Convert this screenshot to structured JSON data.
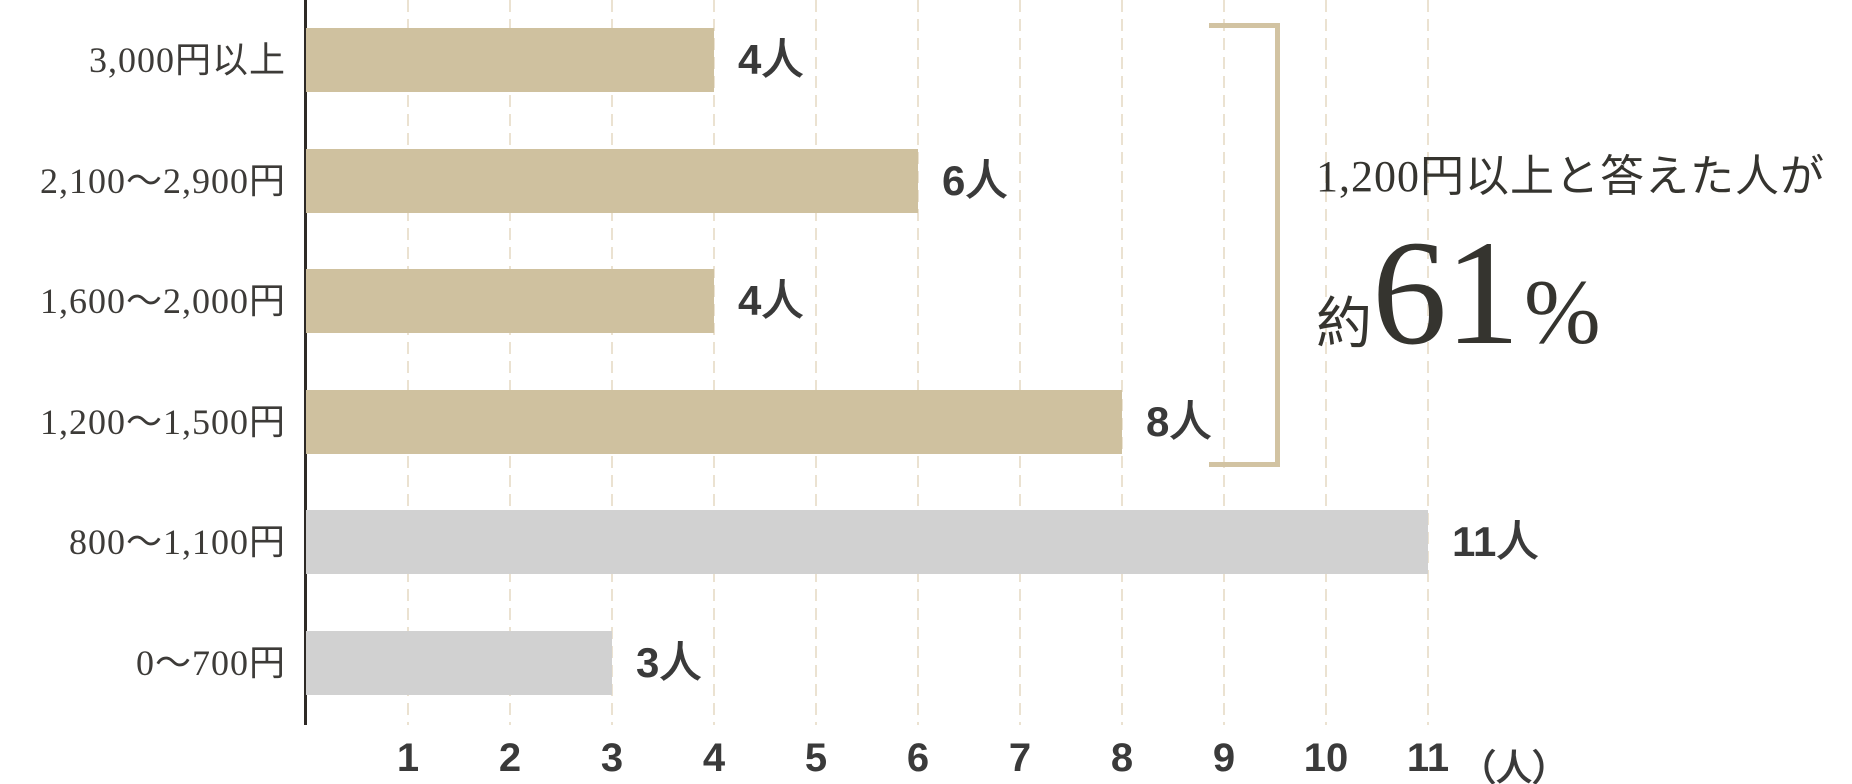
{
  "chart_data": {
    "type": "bar",
    "orientation": "horizontal",
    "title": "",
    "categories": [
      "3,000円以上",
      "2,100〜2,900円",
      "1,600〜2,000円",
      "1,200〜1,500円",
      "800〜1,100円",
      "0〜700円"
    ],
    "values": [
      4,
      6,
      4,
      8,
      11,
      3
    ],
    "value_labels": [
      "4人",
      "6人",
      "4人",
      "8人",
      "11人",
      "3人"
    ],
    "bar_colors": [
      "#cfc19f",
      "#cfc19f",
      "#cfc19f",
      "#cfc19f",
      "#d1d1d1",
      "#d1d1d1"
    ],
    "xlim": [
      0,
      11
    ],
    "x_ticks": [
      "1",
      "2",
      "3",
      "4",
      "5",
      "6",
      "7",
      "8",
      "9",
      "10",
      "11"
    ],
    "x_unit_label": "（人）",
    "grid": "vertical-dashed",
    "legend": "none",
    "annotation": {
      "line1": "1,200円以上と答えた人が",
      "approx_prefix": "約",
      "percent_value": "61",
      "percent_sign": "%",
      "bracket_covers_rows": [
        0,
        3
      ]
    },
    "colors": {
      "bar_highlight": "#cfc19f",
      "bar_muted": "#d1d1d1",
      "gridline": "#ebe2d1",
      "axis": "#2e2a26",
      "text": "#3a3a3a",
      "bracket": "#d2c3a2"
    }
  }
}
